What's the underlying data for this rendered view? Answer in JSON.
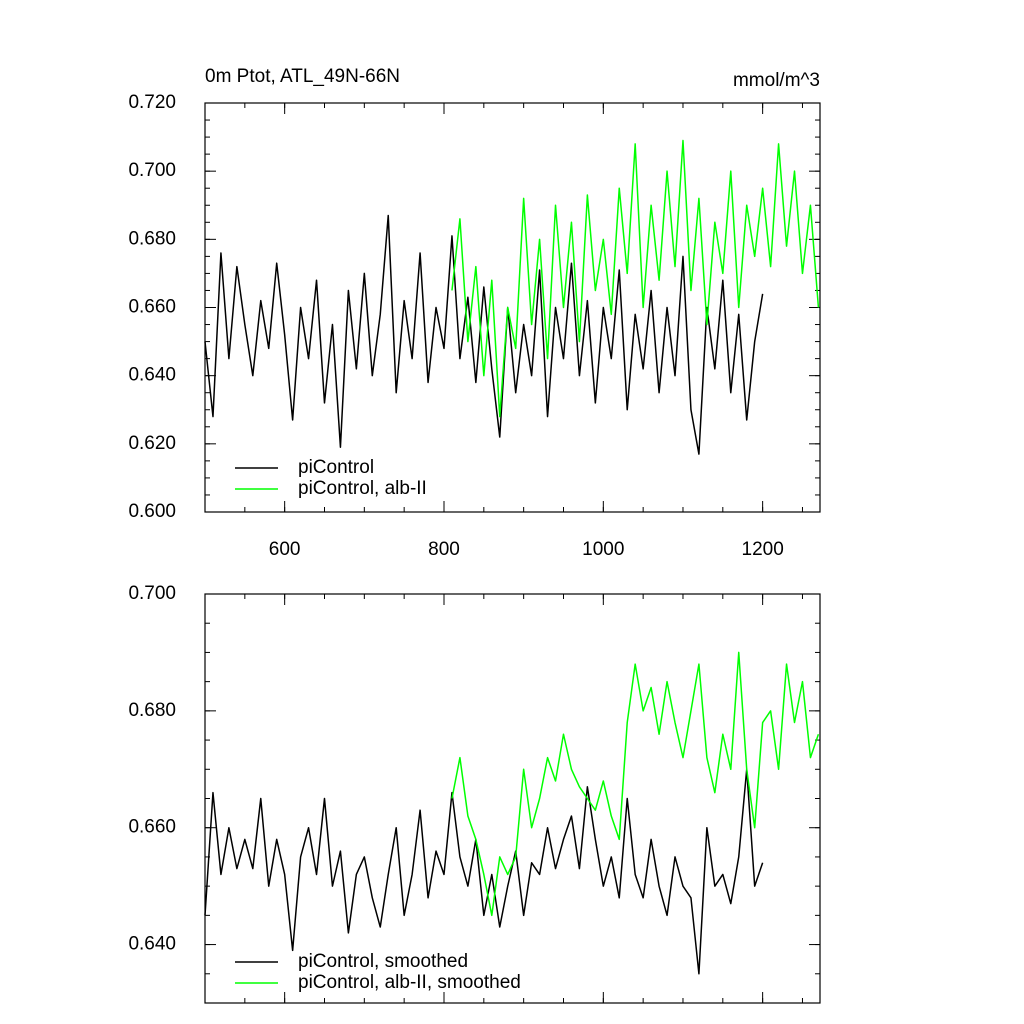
{
  "chart_data": [
    {
      "type": "line",
      "title": "0m Ptot, ATL_49N-66N",
      "units": "mmol/m^3",
      "x": [
        500,
        510,
        520,
        530,
        540,
        550,
        560,
        570,
        580,
        590,
        600,
        610,
        620,
        630,
        640,
        650,
        660,
        670,
        680,
        690,
        700,
        710,
        720,
        730,
        740,
        750,
        760,
        770,
        780,
        790,
        800,
        810,
        820,
        830,
        840,
        850,
        860,
        870,
        880,
        890,
        900,
        910,
        920,
        930,
        940,
        950,
        960,
        970,
        980,
        990,
        1000,
        1010,
        1020,
        1030,
        1040,
        1050,
        1060,
        1070,
        1080,
        1090,
        1100,
        1110,
        1120,
        1130,
        1140,
        1150,
        1160,
        1170,
        1180,
        1190,
        1200,
        1210,
        1220,
        1230,
        1240,
        1250,
        1260,
        1270
      ],
      "series": [
        {
          "name": "piControl",
          "color": "#000000",
          "values": [
            0.65,
            0.628,
            0.676,
            0.645,
            0.672,
            0.655,
            0.64,
            0.662,
            0.648,
            0.673,
            0.652,
            0.627,
            0.66,
            0.645,
            0.668,
            0.632,
            0.655,
            0.619,
            0.665,
            0.642,
            0.67,
            0.64,
            0.658,
            0.687,
            0.635,
            0.662,
            0.645,
            0.676,
            0.638,
            0.66,
            0.648,
            0.681,
            0.645,
            0.663,
            0.638,
            0.666,
            0.642,
            0.622,
            0.66,
            0.635,
            0.655,
            0.64,
            0.671,
            0.628,
            0.66,
            0.645,
            0.673,
            0.64,
            0.662,
            0.632,
            0.66,
            0.645,
            0.671,
            0.63,
            0.658,
            0.642,
            0.665,
            0.635,
            0.66,
            0.64,
            0.675,
            0.63,
            0.617,
            0.66,
            0.642,
            0.668,
            0.635,
            0.658,
            0.627,
            0.65,
            0.664,
            null,
            null,
            null,
            null,
            null,
            null,
            null
          ]
        },
        {
          "name": "piControl, alb-II",
          "color": "#00ff00",
          "values": [
            null,
            null,
            null,
            null,
            null,
            null,
            null,
            null,
            null,
            null,
            null,
            null,
            null,
            null,
            null,
            null,
            null,
            null,
            null,
            null,
            null,
            null,
            null,
            null,
            null,
            null,
            null,
            null,
            null,
            null,
            null,
            0.665,
            0.686,
            0.65,
            0.672,
            0.64,
            0.668,
            0.628,
            0.66,
            0.648,
            0.692,
            0.655,
            0.68,
            0.645,
            0.69,
            0.66,
            0.685,
            0.65,
            0.693,
            0.665,
            0.68,
            0.658,
            0.695,
            0.67,
            0.708,
            0.66,
            0.69,
            0.668,
            0.7,
            0.672,
            0.709,
            0.665,
            0.692,
            0.655,
            0.685,
            0.67,
            0.7,
            0.66,
            0.69,
            0.675,
            0.695,
            0.672,
            0.708,
            0.678,
            0.7,
            0.67,
            0.69,
            0.66
          ]
        }
      ],
      "xlim": [
        500,
        1272
      ],
      "ylim": [
        0.6,
        0.72
      ],
      "xticks": [
        600,
        800,
        1000,
        1200
      ],
      "yticks": [
        {
          "value": 0.6,
          "label": "0.600"
        },
        {
          "value": 0.62,
          "label": "0.620"
        },
        {
          "value": 0.64,
          "label": "0.640"
        },
        {
          "value": 0.66,
          "label": "0.660"
        },
        {
          "value": 0.68,
          "label": "0.680"
        },
        {
          "value": 0.7,
          "label": "0.700"
        },
        {
          "value": 0.72,
          "label": "0.720"
        }
      ]
    },
    {
      "type": "line",
      "x": [
        500,
        510,
        520,
        530,
        540,
        550,
        560,
        570,
        580,
        590,
        600,
        610,
        620,
        630,
        640,
        650,
        660,
        670,
        680,
        690,
        700,
        710,
        720,
        730,
        740,
        750,
        760,
        770,
        780,
        790,
        800,
        810,
        820,
        830,
        840,
        850,
        860,
        870,
        880,
        890,
        900,
        910,
        920,
        930,
        940,
        950,
        960,
        970,
        980,
        990,
        1000,
        1010,
        1020,
        1030,
        1040,
        1050,
        1060,
        1070,
        1080,
        1090,
        1100,
        1110,
        1120,
        1130,
        1140,
        1150,
        1160,
        1170,
        1180,
        1190,
        1200,
        1210,
        1220,
        1230,
        1240,
        1250,
        1260,
        1270
      ],
      "series": [
        {
          "name": "piControl, smoothed",
          "color": "#000000",
          "values": [
            0.645,
            0.666,
            0.652,
            0.66,
            0.653,
            0.658,
            0.653,
            0.665,
            0.65,
            0.658,
            0.652,
            0.639,
            0.655,
            0.66,
            0.652,
            0.665,
            0.65,
            0.656,
            0.642,
            0.652,
            0.655,
            0.648,
            0.643,
            0.652,
            0.66,
            0.645,
            0.652,
            0.663,
            0.648,
            0.656,
            0.652,
            0.666,
            0.655,
            0.65,
            0.658,
            0.645,
            0.652,
            0.643,
            0.65,
            0.656,
            0.645,
            0.654,
            0.652,
            0.66,
            0.653,
            0.658,
            0.662,
            0.653,
            0.667,
            0.658,
            0.65,
            0.655,
            0.648,
            0.665,
            0.652,
            0.648,
            0.658,
            0.65,
            0.645,
            0.655,
            0.65,
            0.648,
            0.635,
            0.66,
            0.65,
            0.652,
            0.647,
            0.655,
            0.67,
            0.65,
            0.654,
            null,
            null,
            null,
            null,
            null,
            null,
            null
          ]
        },
        {
          "name": "piControl, alb-II, smoothed",
          "color": "#00ff00",
          "values": [
            null,
            null,
            null,
            null,
            null,
            null,
            null,
            null,
            null,
            null,
            null,
            null,
            null,
            null,
            null,
            null,
            null,
            null,
            null,
            null,
            null,
            null,
            null,
            null,
            null,
            null,
            null,
            null,
            null,
            null,
            null,
            0.665,
            0.672,
            0.662,
            0.658,
            0.652,
            0.645,
            0.655,
            0.652,
            0.655,
            0.67,
            0.66,
            0.665,
            0.672,
            0.668,
            0.676,
            0.67,
            0.667,
            0.665,
            0.663,
            0.668,
            0.662,
            0.658,
            0.678,
            0.688,
            0.68,
            0.684,
            0.676,
            0.685,
            0.678,
            0.672,
            0.68,
            0.688,
            0.672,
            0.666,
            0.676,
            0.67,
            0.69,
            0.67,
            0.66,
            0.678,
            0.68,
            0.67,
            0.688,
            0.678,
            0.685,
            0.672,
            0.676
          ]
        }
      ],
      "xlim": [
        500,
        1272
      ],
      "ylim": [
        0.63,
        0.7
      ],
      "xticks": [
        600,
        800,
        1000,
        1200
      ],
      "yticks": [
        {
          "value": 0.64,
          "label": "0.640"
        },
        {
          "value": 0.66,
          "label": "0.660"
        },
        {
          "value": 0.68,
          "label": "0.680"
        },
        {
          "value": 0.7,
          "label": "0.700"
        }
      ]
    }
  ]
}
